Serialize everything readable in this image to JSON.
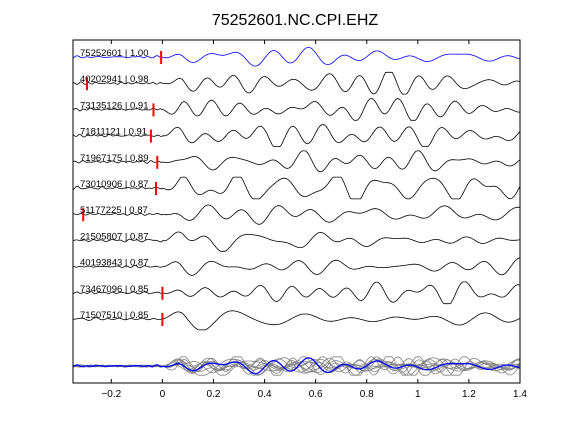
{
  "chart_data": {
    "type": "line",
    "title": "75252601.NC.CPI.EHZ",
    "xlabel": "",
    "ylabel": "",
    "xlim": [
      -0.35,
      1.4
    ],
    "xticks": [
      -0.2,
      0,
      0.2,
      0.4,
      0.6,
      0.8,
      1,
      1.2,
      1.4
    ],
    "xtick_labels": [
      "−0.2",
      "0",
      "0.2",
      "0.4",
      "0.6",
      "0.8",
      "1",
      "1.2",
      "1.4"
    ],
    "grid": false,
    "colors": {
      "reference": "#0000ff",
      "trace": "#000000",
      "pick": "#ff0000",
      "stack": "#808080"
    },
    "traces": [
      {
        "label": "75252601 | 1.00",
        "event_id": "75252601",
        "cc": 1.0,
        "pick_time": -0.005,
        "color": "#0000ff"
      },
      {
        "label": "40202941 | 0.98",
        "event_id": "40202941",
        "cc": 0.98,
        "pick_time": -0.295,
        "color": "#000000"
      },
      {
        "label": "73135126 | 0.91",
        "event_id": "73135126",
        "cc": 0.91,
        "pick_time": -0.035,
        "color": "#000000"
      },
      {
        "label": "71811121 | 0.91",
        "event_id": "71811121",
        "cc": 0.91,
        "pick_time": -0.045,
        "color": "#000000"
      },
      {
        "label": "71967175 | 0.89",
        "event_id": "71967175",
        "cc": 0.89,
        "pick_time": -0.02,
        "color": "#000000"
      },
      {
        "label": "73010906 | 0.87",
        "event_id": "73010906",
        "cc": 0.87,
        "pick_time": -0.025,
        "color": "#000000"
      },
      {
        "label": "51177225 | 0.87",
        "event_id": "51177225",
        "cc": 0.87,
        "pick_time": -0.31,
        "color": "#000000"
      },
      {
        "label": "21505807 | 0.87",
        "event_id": "21505807",
        "cc": 0.87,
        "pick_time": null,
        "color": "#000000"
      },
      {
        "label": "40193843 | 0.87",
        "event_id": "40193843",
        "cc": 0.87,
        "pick_time": null,
        "color": "#000000"
      },
      {
        "label": "73467096 | 0.85",
        "event_id": "73467096",
        "cc": 0.85,
        "pick_time": 0.0,
        "color": "#000000"
      },
      {
        "label": "71507510 | 0.85",
        "event_id": "71507510",
        "cc": 0.85,
        "pick_time": 0.0,
        "color": "#000000"
      }
    ],
    "stack": {
      "reference_color": "#0000ff",
      "overlay_color": "#808080"
    }
  }
}
